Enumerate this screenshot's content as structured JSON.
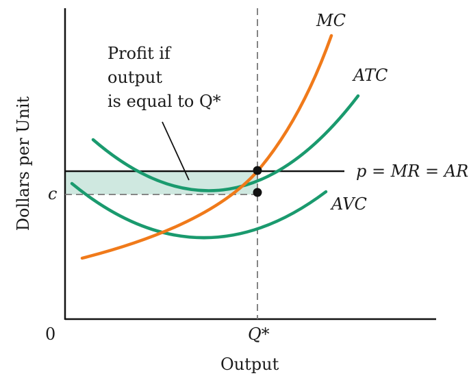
{
  "y_axis_label": "Dollars per Unit",
  "x_axis_label": "Output",
  "origin_label": "0",
  "q_star_label": "Q*",
  "c_label": "c",
  "price_line_label": "p = MR = AR",
  "profit_annotation": [
    "Profit if",
    "output",
    "is equal to Q*"
  ],
  "curves": [
    {
      "label": "MC",
      "color": "#f07a1a"
    },
    {
      "label": "ATC",
      "color": "#1a9a6e"
    },
    {
      "label": "AVC",
      "color": "#1a9a6e"
    }
  ],
  "profit_area_color": "#cfe8e0"
}
